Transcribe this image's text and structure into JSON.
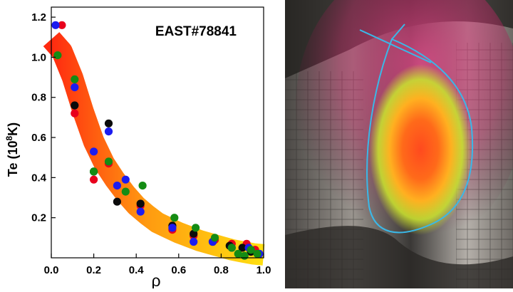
{
  "chart_data": {
    "type": "scatter",
    "title": "EAST#78841",
    "xlabel": "ρ",
    "ylabel_main": "Te (10",
    "ylabel_exp": "8",
    "ylabel_unit": "K)",
    "xlim": [
      0.0,
      1.0
    ],
    "ylim": [
      0.0,
      1.25
    ],
    "xticks": [
      "0.0",
      "0.2",
      "0.4",
      "0.6",
      "0.8",
      "1.0"
    ],
    "yticks": [
      "0.2",
      "0.4",
      "0.6",
      "0.8",
      "1.0",
      "1.2"
    ],
    "grid": false,
    "legend": "none",
    "fit_band": {
      "x": [
        0.0,
        0.05,
        0.1,
        0.15,
        0.2,
        0.25,
        0.3,
        0.35,
        0.4,
        0.45,
        0.5,
        0.55,
        0.6,
        0.65,
        0.7,
        0.75,
        0.8,
        0.85,
        0.9,
        0.95,
        1.0
      ],
      "y": [
        1.09,
        1.03,
        0.9,
        0.73,
        0.58,
        0.47,
        0.39,
        0.32,
        0.26,
        0.215,
        0.175,
        0.15,
        0.125,
        0.105,
        0.085,
        0.07,
        0.055,
        0.04,
        0.03,
        0.02,
        0.015
      ],
      "colors_start": "#ff2a10",
      "colors_mid": "#ff9a10",
      "colors_end": "#ffe010"
    },
    "series": [
      {
        "color": "#e8001c",
        "points": [
          [
            0.05,
            1.16
          ],
          [
            0.11,
            0.72
          ],
          [
            0.2,
            0.39
          ],
          [
            0.27,
            0.47
          ],
          [
            0.42,
            0.26
          ],
          [
            0.57,
            0.14
          ],
          [
            0.67,
            0.11
          ],
          [
            0.77,
            0.09
          ],
          [
            0.85,
            0.07
          ],
          [
            0.92,
            0.07
          ],
          [
            0.96,
            0.04
          ]
        ]
      },
      {
        "color": "#0b0b0b",
        "points": [
          [
            0.11,
            0.76
          ],
          [
            0.2,
            0.43
          ],
          [
            0.27,
            0.67
          ],
          [
            0.31,
            0.28
          ],
          [
            0.42,
            0.27
          ],
          [
            0.57,
            0.16
          ],
          [
            0.67,
            0.12
          ],
          [
            0.76,
            0.08
          ],
          [
            0.84,
            0.06
          ],
          [
            0.9,
            0.05
          ],
          [
            0.94,
            0.03
          ]
        ]
      },
      {
        "color": "#1c1cf0",
        "points": [
          [
            0.02,
            1.16
          ],
          [
            0.11,
            0.85
          ],
          [
            0.2,
            0.53
          ],
          [
            0.27,
            0.63
          ],
          [
            0.31,
            0.36
          ],
          [
            0.35,
            0.39
          ],
          [
            0.42,
            0.23
          ],
          [
            0.57,
            0.15
          ],
          [
            0.67,
            0.08
          ],
          [
            0.76,
            0.08
          ],
          [
            0.85,
            0.05
          ],
          [
            0.93,
            0.05
          ],
          [
            0.98,
            0.02
          ]
        ]
      },
      {
        "color": "#148c14",
        "points": [
          [
            0.03,
            1.01
          ],
          [
            0.11,
            0.89
          ],
          [
            0.2,
            0.43
          ],
          [
            0.27,
            0.48
          ],
          [
            0.35,
            0.33
          ],
          [
            0.43,
            0.36
          ],
          [
            0.58,
            0.2
          ],
          [
            0.68,
            0.15
          ],
          [
            0.77,
            0.1
          ],
          [
            0.85,
            0.05
          ],
          [
            0.88,
            0.02
          ],
          [
            0.91,
            0.01
          ],
          [
            0.94,
            0.04
          ],
          [
            0.97,
            0.02
          ]
        ]
      }
    ]
  },
  "photo": {
    "colors": {
      "wall_dark": "#3a3a3a",
      "wall_mid": "#8a8580",
      "wall_light": "#c8c3bd",
      "pink_glow": "#d23c78",
      "plasma_core": "#ff3a1a",
      "plasma_mid": "#ffb020",
      "plasma_outer": "#c8e030",
      "contour": "#3ab8e8"
    }
  }
}
